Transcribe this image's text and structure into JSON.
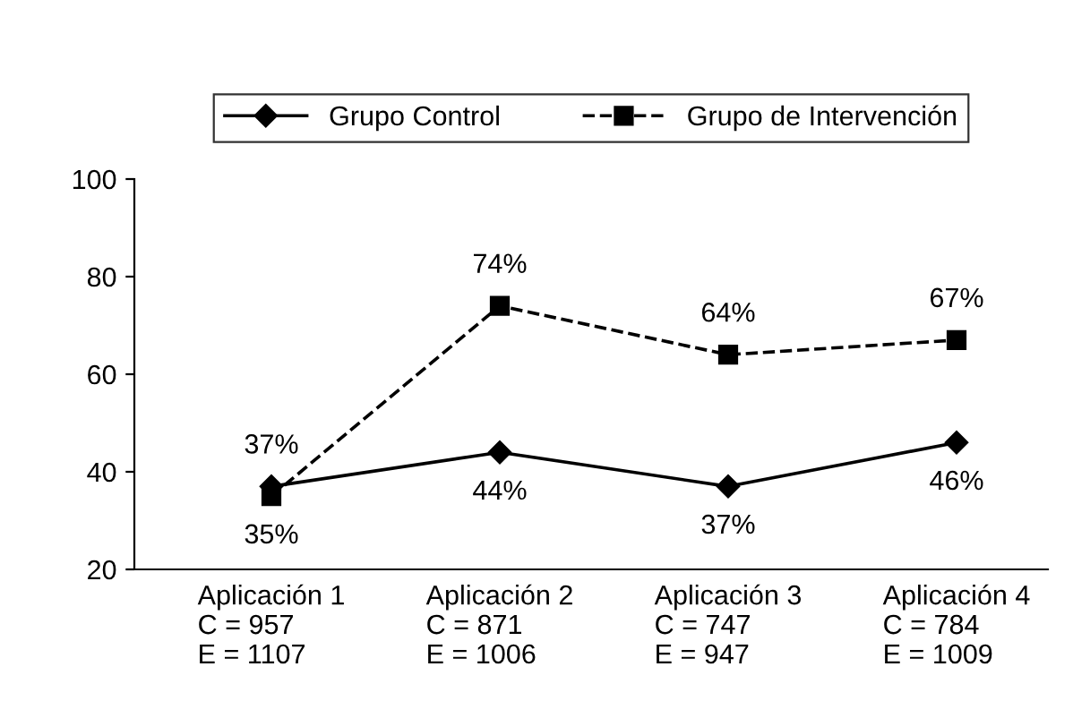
{
  "chart_data": {
    "type": "line",
    "categories": [
      "Aplicación 1\nC = 957\nE = 1107",
      "Aplicación 2\nC = 871\nE = 1006",
      "Aplicación 3\nC = 747\nE = 947",
      "Aplicación 4\nC = 784\nE = 1009"
    ],
    "series": [
      {
        "name": "Grupo Control",
        "color": "#000000",
        "marker": "diamond",
        "line_style": "solid",
        "values": [
          37,
          44,
          37,
          46
        ],
        "value_labels": [
          "37%",
          "44%",
          "37%",
          "46%"
        ]
      },
      {
        "name": "Grupo de Intervención",
        "color": "#000000",
        "marker": "square",
        "line_style": "dashed",
        "values": [
          35,
          74,
          64,
          67
        ],
        "value_labels": [
          "35%",
          "74%",
          "64%",
          "67%"
        ]
      }
    ],
    "ylim": [
      20,
      100
    ],
    "yticks": [
      20,
      40,
      60,
      80,
      100
    ],
    "grid": false,
    "legend": "top"
  }
}
